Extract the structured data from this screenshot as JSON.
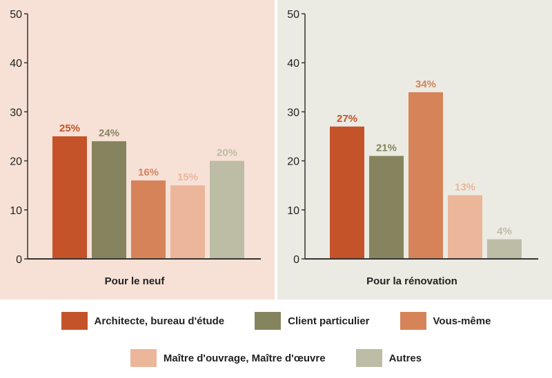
{
  "colors": {
    "panel_left_bg": "#f7e1d6",
    "panel_right_bg": "#ebebe3",
    "axis": "#333333",
    "label_text": "#222222"
  },
  "legend": [
    {
      "name": "Architecte, bureau d'étude",
      "color": "#c4532a"
    },
    {
      "name": "Client particulier",
      "color": "#85845e"
    },
    {
      "name": "Vous-même",
      "color": "#d6835a"
    },
    {
      "name": "Maître d'ouvrage, Maître d'œuvre",
      "color": "#ebb69a"
    },
    {
      "name": "Autres",
      "color": "#bdbca5"
    }
  ],
  "chart_data": [
    {
      "type": "bar",
      "xlabel": "Pour le neuf",
      "ylim": [
        0,
        50
      ],
      "yticks": [
        0,
        10,
        20,
        30,
        40,
        50
      ],
      "values": [
        25,
        24,
        16,
        15,
        20
      ],
      "data_labels": [
        "25%",
        "24%",
        "16%",
        "15%",
        "20%"
      ],
      "label_colors": [
        "#c4532a",
        "#85845e",
        "#d6835a",
        "#ebb69a",
        "#bdbca5"
      ]
    },
    {
      "type": "bar",
      "xlabel": "Pour la rénovation",
      "ylim": [
        0,
        50
      ],
      "yticks": [
        0,
        10,
        20,
        30,
        40,
        50
      ],
      "values": [
        27,
        21,
        34,
        13,
        4
      ],
      "data_labels": [
        "27%",
        "21%",
        "34%",
        "13%",
        "4%"
      ],
      "label_colors": [
        "#c4532a",
        "#85845e",
        "#d6835a",
        "#ebb69a",
        "#bdbca5"
      ]
    }
  ]
}
